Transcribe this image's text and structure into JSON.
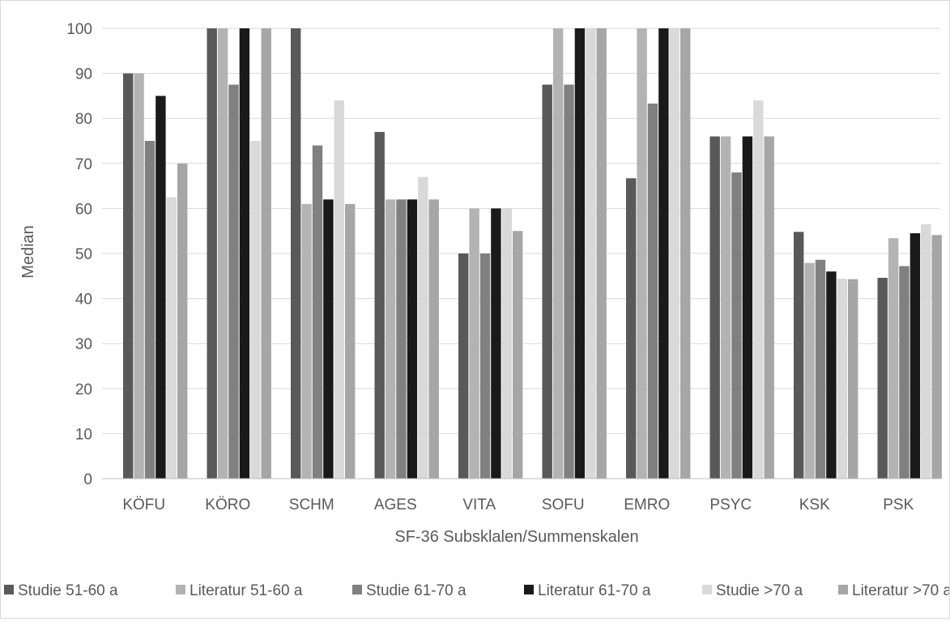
{
  "chart_data": {
    "type": "bar",
    "title": "",
    "xlabel": "SF-36 Subsklalen/Summenskalen",
    "ylabel": "Median",
    "ylim": [
      0,
      100
    ],
    "yticks": [
      0,
      10,
      20,
      30,
      40,
      50,
      60,
      70,
      80,
      90,
      100
    ],
    "grid": true,
    "legend_position": "bottom",
    "categories": [
      "KÖFU",
      "KÖRO",
      "SCHM",
      "AGES",
      "VITA",
      "SOFU",
      "EMRO",
      "PSYC",
      "KSK",
      "PSK"
    ],
    "series": [
      {
        "name": "Studie 51-60 a",
        "color": "#595959",
        "values": [
          90,
          100,
          100,
          77,
          50,
          87.5,
          66.7,
          76,
          54.8,
          44.6
        ]
      },
      {
        "name": "Literatur 51-60 a",
        "color": "#b3b3b3",
        "values": [
          90,
          100,
          61,
          62,
          60,
          100,
          100,
          76,
          47.9,
          53.4
        ]
      },
      {
        "name": "Studie 61-70 a",
        "color": "#808080",
        "values": [
          75,
          87.5,
          74,
          62,
          50,
          87.5,
          83.3,
          68,
          48.6,
          47.2
        ]
      },
      {
        "name": "Literatur 61-70 a",
        "color": "#1a1a1a",
        "values": [
          85,
          100,
          62,
          62,
          60,
          100,
          100,
          76,
          46,
          54.5
        ]
      },
      {
        "name": "Studie >70 a",
        "color": "#d9d9d9",
        "values": [
          62.5,
          75,
          84,
          67,
          60,
          100,
          100,
          84,
          44.4,
          56.5
        ]
      },
      {
        "name": "Literatur >70 a",
        "color": "#a6a6a6",
        "values": [
          70,
          100,
          61,
          62,
          55,
          100,
          100,
          76,
          44.3,
          54.1
        ]
      }
    ]
  }
}
